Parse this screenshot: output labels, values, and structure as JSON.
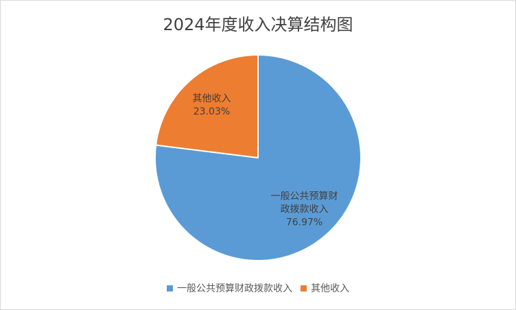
{
  "chart_data": {
    "type": "pie",
    "title": "2024年度收入决算结构图",
    "categories": [
      "一般公共预算财政拨款收入",
      "其他收入"
    ],
    "values": [
      76.97,
      23.03
    ],
    "value_labels": [
      "76.97%",
      "23.03%"
    ],
    "colors": [
      "#5b9bd5",
      "#ed7d31"
    ],
    "legend": "bottom"
  }
}
